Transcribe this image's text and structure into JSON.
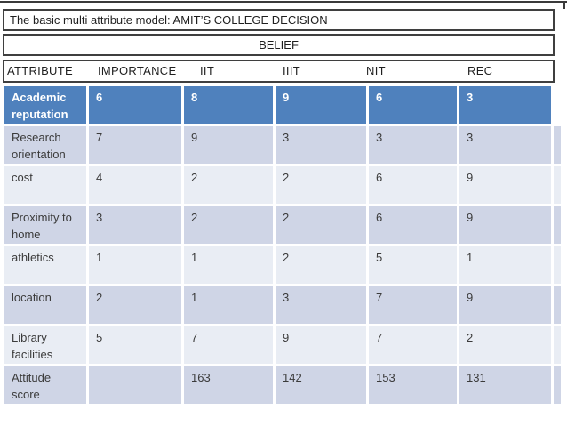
{
  "slide": {
    "title": "The basic multi attribute model: AMIT’S COLLEGE DECISION",
    "belief_label": "BELIEF"
  },
  "header": {
    "columns": [
      "ATTRIBUTE",
      "IMPORTANCE",
      "IIT",
      "IIIT",
      "NIT",
      "REC"
    ]
  },
  "table": {
    "rows": [
      {
        "cells": [
          "Academic reputation",
          "6",
          "8",
          "9",
          "6",
          "3"
        ],
        "highlight": true
      },
      {
        "cells": [
          "Research orientation",
          "7",
          "9",
          "3",
          "3",
          "3"
        ],
        "highlight": false
      },
      {
        "cells": [
          "cost",
          "4",
          "2",
          "2",
          "6",
          "9"
        ],
        "highlight": false
      },
      {
        "cells": [
          "Proximity to home",
          "3",
          "2",
          "2",
          "6",
          "9"
        ],
        "highlight": false
      },
      {
        "cells": [
          "athletics",
          "1",
          "1",
          "2",
          "5",
          "1"
        ],
        "highlight": false
      },
      {
        "cells": [
          "location",
          "2",
          "1",
          "3",
          "7",
          "9"
        ],
        "highlight": false
      },
      {
        "cells": [
          "Library facilities",
          "5",
          "7",
          "9",
          "7",
          "2"
        ],
        "highlight": false
      },
      {
        "cells": [
          "Attitude score",
          "",
          "163",
          "142",
          "153",
          "131"
        ],
        "highlight": false
      }
    ]
  },
  "colors": {
    "highlight_row": "#4F81BD",
    "band_dark": "#CFD5E6",
    "band_light": "#E9EDF4",
    "box_border": "#3f3f3f",
    "text_dark": "#3b3b3b",
    "text_title": "#1f1f1f",
    "highlight_text": "#ffffff"
  }
}
